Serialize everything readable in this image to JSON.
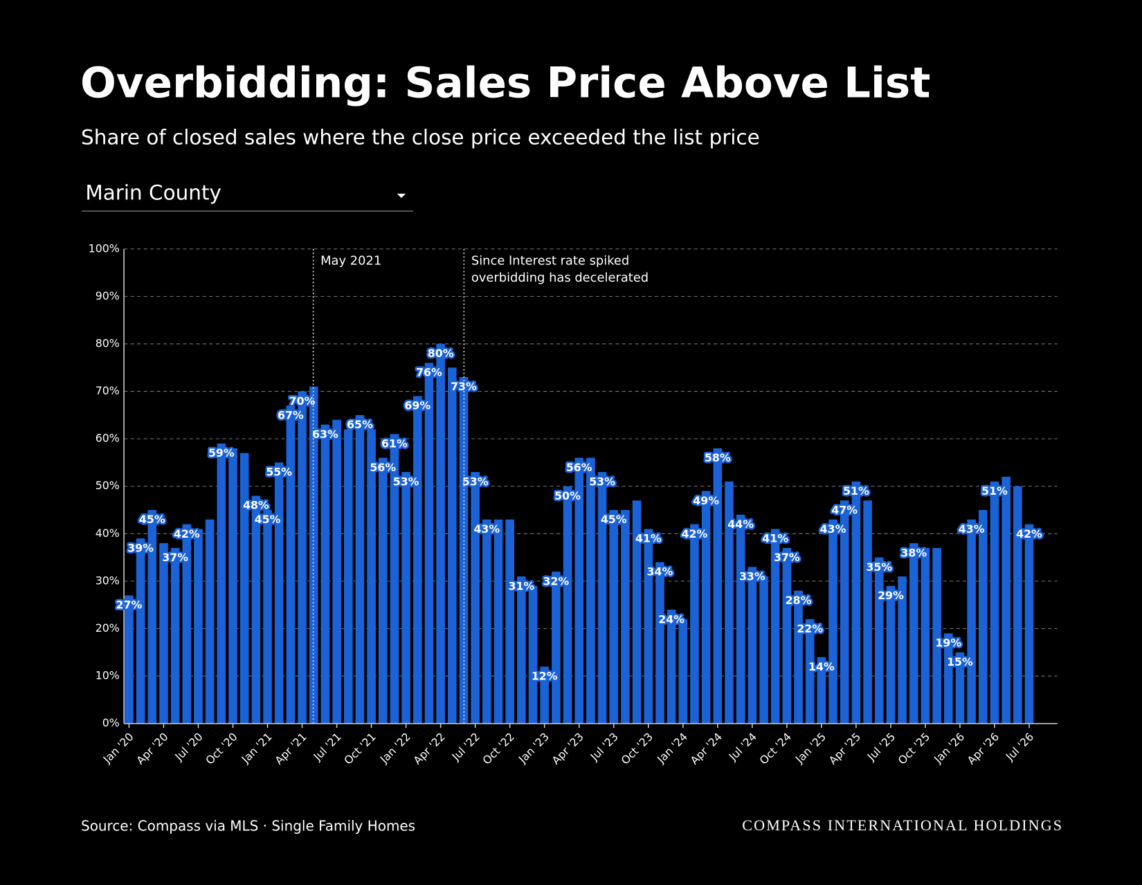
{
  "chart_data": {
    "type": "bar",
    "title": "Overbidding: Sales Price Above List",
    "subtitle": "Share of closed sales where the close price exceeded the list price",
    "selector": "Marin County",
    "source": "Source: Compass via MLS · Single Family Homes",
    "brand": "COMPASS INTERNATIONAL HOLDINGS",
    "annotations": [
      {
        "text": "May 2021"
      },
      {
        "text": "Since Interest rate spiked",
        "text2": "overbidding has decelerated"
      }
    ],
    "color": "#1a62d6",
    "grid": true,
    "ylim": [
      0,
      100
    ],
    "yticks": [
      {
        "value": 0,
        "label": "0%"
      },
      {
        "value": 10,
        "label": "10%"
      },
      {
        "value": 20,
        "label": "20%"
      },
      {
        "value": 30,
        "label": "30%"
      },
      {
        "value": 40,
        "label": "40%"
      },
      {
        "value": 50,
        "label": "50%"
      },
      {
        "value": 60,
        "label": "60%"
      },
      {
        "value": 70,
        "label": "70%"
      },
      {
        "value": 80,
        "label": "80%"
      },
      {
        "value": 90,
        "label": "90%"
      },
      {
        "value": 100,
        "label": "100%"
      }
    ],
    "categories": [
      "Jan '20",
      null,
      null,
      "Apr '20",
      null,
      null,
      "Jul '20",
      null,
      null,
      "Oct '20",
      null,
      null,
      "Jan '21",
      null,
      null,
      "Apr '21",
      null,
      null,
      "Jul '21",
      null,
      null,
      "Oct '21",
      null,
      null,
      "Jan '22",
      null,
      null,
      "Apr '22",
      null,
      null,
      "Jul '22",
      null,
      null,
      "Oct '22",
      null,
      null,
      "Jan '23",
      null,
      null,
      "Apr '23",
      null,
      null,
      "Jul '23",
      null,
      null,
      "Oct '23",
      null,
      null,
      "Jan '24",
      null,
      null,
      "Apr '24",
      null,
      null,
      "Jul '24",
      null,
      null,
      "Oct '24",
      null,
      null,
      "Jan '25",
      null,
      null,
      "Apr '25",
      null,
      null,
      "Jul '25",
      null,
      null,
      "Oct '25",
      null,
      null,
      "Jan '26",
      null,
      null,
      "Apr '26",
      null,
      null,
      "Jul '26"
    ],
    "values": [
      27,
      39,
      45,
      38,
      37,
      42,
      41,
      43,
      59,
      58,
      57,
      48,
      45,
      55,
      67,
      70,
      71,
      63,
      64,
      62,
      65,
      62,
      56,
      61,
      53,
      69,
      76,
      80,
      75,
      73,
      53,
      43,
      43,
      43,
      31,
      29,
      12,
      32,
      50,
      56,
      56,
      53,
      45,
      45,
      47,
      41,
      34,
      24,
      22,
      42,
      49,
      58,
      51,
      44,
      33,
      31,
      41,
      37,
      28,
      22,
      14,
      43,
      47,
      51,
      47,
      35,
      29,
      31,
      38,
      37,
      37,
      19,
      15,
      43,
      45,
      51,
      52,
      50,
      42
    ],
    "value_labels": [
      "27%",
      "39%",
      "45%",
      null,
      "37%",
      "42%",
      null,
      null,
      "59%",
      null,
      null,
      "48%",
      "45%",
      "55%",
      "67%",
      "70%",
      null,
      "63%",
      null,
      null,
      "65%",
      null,
      "56%",
      "61%",
      "53%",
      "69%",
      "76%",
      "80%",
      null,
      "73%",
      "53%",
      "43%",
      null,
      null,
      "31%",
      null,
      "12%",
      "32%",
      "50%",
      "56%",
      null,
      "53%",
      "45%",
      null,
      null,
      "41%",
      "34%",
      "24%",
      null,
      "42%",
      "49%",
      "58%",
      null,
      "44%",
      "33%",
      null,
      "41%",
      "37%",
      "28%",
      "22%",
      "14%",
      "43%",
      "47%",
      "51%",
      null,
      "35%",
      "29%",
      null,
      "38%",
      null,
      null,
      "19%",
      "15%",
      "43%",
      null,
      "51%",
      null,
      null,
      "42%"
    ]
  }
}
